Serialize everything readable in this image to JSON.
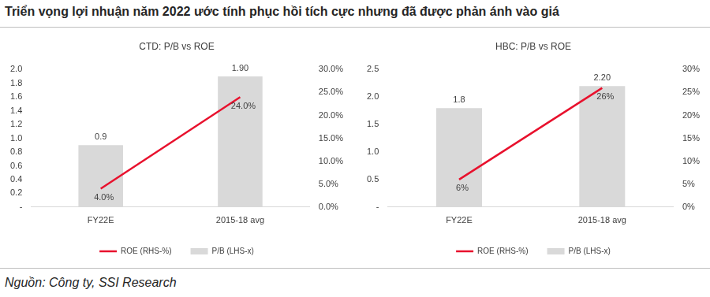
{
  "title": "Triển vọng lợi nhuận năm 2022 ước tính phục hồi tích cực nhưng đã được phản ánh vào giá",
  "source": "Nguồn: Công ty, SSI Research",
  "chart_data": [
    {
      "type": "bar",
      "title": "CTD: P/B vs ROE",
      "categories": [
        "FY22E",
        "2015-18 avg"
      ],
      "series": [
        {
          "name": "P/B (LHS-x)",
          "type": "bar",
          "color": "#d9d9d9",
          "values": [
            0.9,
            1.9
          ],
          "value_labels": [
            "0.9",
            "1.90"
          ]
        },
        {
          "name": "ROE (RHS-%)",
          "type": "line",
          "axis": "y2",
          "color": "#e8112d",
          "values": [
            4.0,
            24.0
          ],
          "value_labels": [
            "4.0%",
            "24.0%"
          ]
        }
      ],
      "ylim": [
        0,
        2
      ],
      "yticks": [
        {
          "value": 0,
          "label": "-"
        },
        0.2,
        0.4,
        0.6,
        0.8,
        {
          "value": 1,
          "label": "1.0"
        },
        1.2,
        1.4,
        1.6,
        1.8,
        {
          "value": 2,
          "label": "2.0"
        }
      ],
      "y2lim": [
        0,
        30
      ],
      "y2ticks": [
        {
          "value": 0,
          "label": "0.0%"
        },
        {
          "value": 5,
          "label": "5.0%"
        },
        {
          "value": 10,
          "label": "10.0%"
        },
        {
          "value": 15,
          "label": "15.0%"
        },
        {
          "value": 20,
          "label": "20.0%"
        },
        {
          "value": 25,
          "label": "25.0%"
        },
        {
          "value": 30,
          "label": "30.0%"
        }
      ],
      "grid": false,
      "legend": "bottom",
      "data_labels": true
    },
    {
      "type": "bar",
      "title": "HBC: P/B vs ROE",
      "categories": [
        "FY22E",
        "2015-18 avg"
      ],
      "series": [
        {
          "name": "P/B (LHS-x)",
          "type": "bar",
          "color": "#d9d9d9",
          "values": [
            1.8,
            2.2
          ],
          "value_labels": [
            "1.8",
            "2.20"
          ]
        },
        {
          "name": "ROE (RHS-%)",
          "type": "line",
          "axis": "y2",
          "color": "#e8112d",
          "values": [
            6,
            26
          ],
          "value_labels": [
            "6%",
            "26%"
          ]
        }
      ],
      "ylim": [
        0,
        2.5
      ],
      "yticks": [
        {
          "value": 0,
          "label": "-"
        },
        0.5,
        {
          "value": 1,
          "label": "1.0"
        },
        1.5,
        {
          "value": 2,
          "label": "2.0"
        },
        2.5
      ],
      "y2lim": [
        0,
        30
      ],
      "y2ticks": [
        {
          "value": 0,
          "label": "0%"
        },
        {
          "value": 5,
          "label": "5%"
        },
        {
          "value": 10,
          "label": "10%"
        },
        {
          "value": 15,
          "label": "15%"
        },
        {
          "value": 20,
          "label": "20%"
        },
        {
          "value": 25,
          "label": "25%"
        },
        {
          "value": 30,
          "label": "30%"
        }
      ],
      "grid": false,
      "legend": "bottom",
      "data_labels": true
    }
  ]
}
